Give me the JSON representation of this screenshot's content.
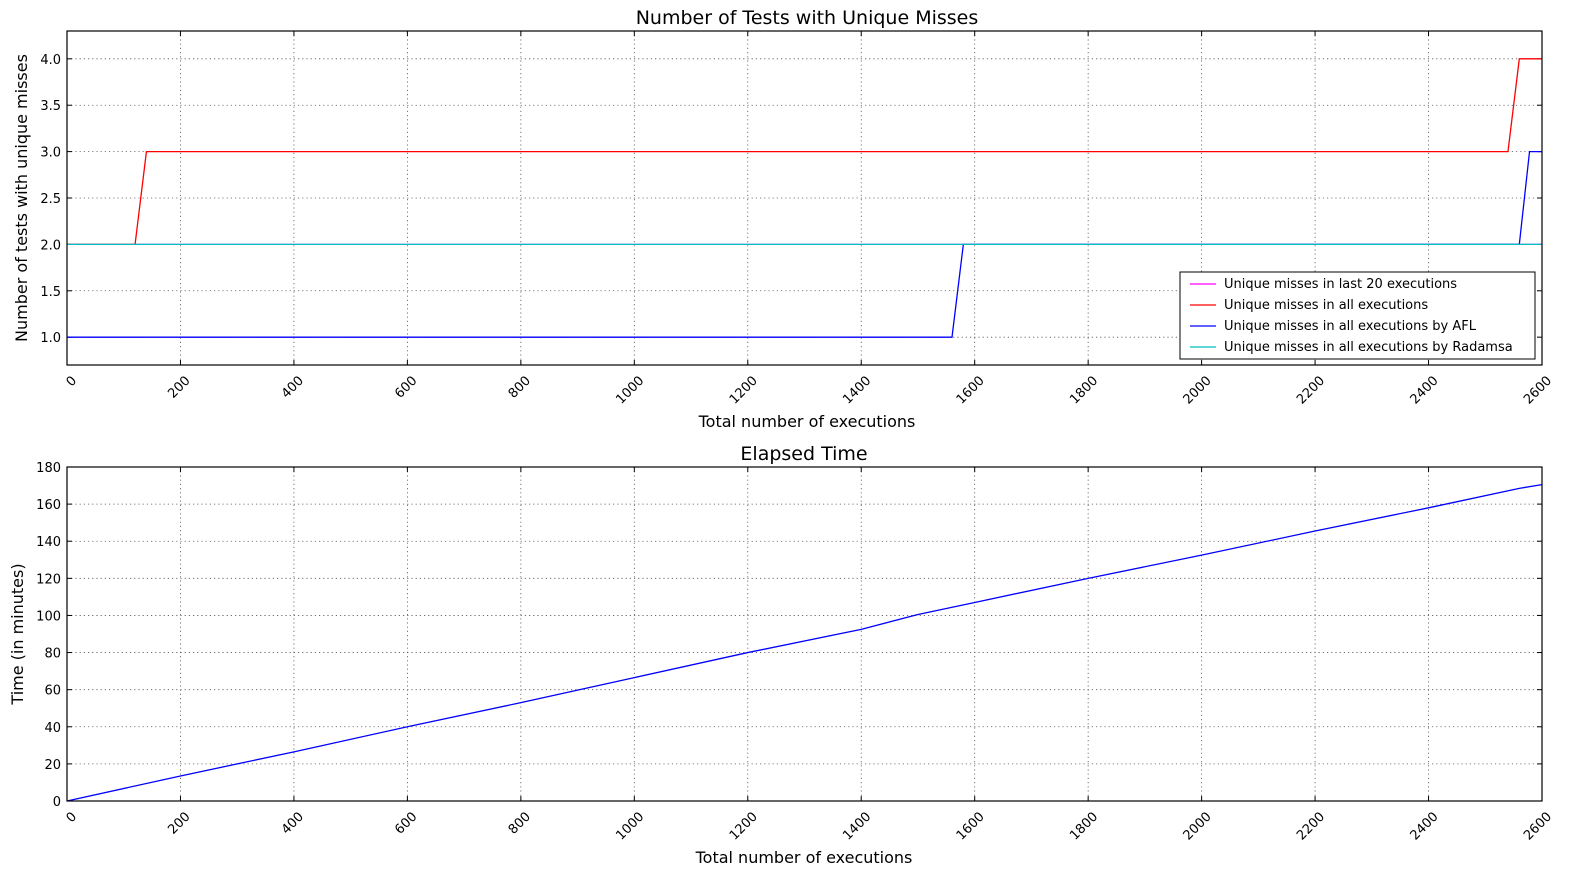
{
  "chart_data": [
    {
      "type": "line",
      "title": "Number of Tests with Unique Misses",
      "xlabel": "Total number of executions",
      "ylabel": "Number of tests with unique misses",
      "xlim": [
        0,
        2600
      ],
      "ylim": [
        0.7,
        4.3
      ],
      "xticks": [
        "0",
        "200",
        "400",
        "600",
        "800",
        "1000",
        "1200",
        "1400",
        "1600",
        "1800",
        "2000",
        "2200",
        "2400",
        "2600"
      ],
      "yticks": [
        "1.0",
        "1.5",
        "2.0",
        "2.5",
        "3.0",
        "3.5",
        "4.0"
      ],
      "grid": true,
      "legend_position": "lower-right",
      "series": [
        {
          "name": "Unique misses in last 20 executions",
          "color": "#ff00ff",
          "x": [
            0,
            2600
          ],
          "y": [
            2.0,
            2.0
          ]
        },
        {
          "name": "Unique misses in all executions",
          "color": "#ff0000",
          "x": [
            0,
            120,
            140,
            2540,
            2560,
            2600
          ],
          "y": [
            2.0,
            2.0,
            3.0,
            3.0,
            4.0,
            4.0
          ]
        },
        {
          "name": "Unique misses in all executions by AFL",
          "color": "#0000ff",
          "x": [
            0,
            1560,
            1580,
            2560,
            2578,
            2600
          ],
          "y": [
            1.0,
            1.0,
            2.0,
            2.0,
            3.0,
            3.0
          ]
        },
        {
          "name": "Unique misses in all executions by Radamsa",
          "color": "#00bfbf",
          "x": [
            0,
            2600
          ],
          "y": [
            2.0,
            2.0
          ]
        }
      ]
    },
    {
      "type": "line",
      "title": "Elapsed Time",
      "xlabel": "Total number of executions",
      "ylabel": "Time (in minutes)",
      "xlim": [
        0,
        2600
      ],
      "ylim": [
        0,
        180
      ],
      "xticks": [
        "0",
        "200",
        "400",
        "600",
        "800",
        "1000",
        "1200",
        "1400",
        "1600",
        "1800",
        "2000",
        "2200",
        "2400",
        "2600"
      ],
      "yticks": [
        "0",
        "20",
        "40",
        "60",
        "80",
        "100",
        "120",
        "140",
        "160",
        "180"
      ],
      "grid": true,
      "series": [
        {
          "color": "#0000ff",
          "x": [
            0,
            200,
            400,
            600,
            800,
            1000,
            1200,
            1400,
            1500,
            1600,
            1800,
            2000,
            2200,
            2400,
            2560,
            2600
          ],
          "y": [
            0,
            13.5,
            26.5,
            40,
            53,
            66.5,
            80,
            92.5,
            100.5,
            107,
            120,
            132.5,
            145.5,
            158,
            168.5,
            170.5
          ]
        }
      ]
    }
  ]
}
